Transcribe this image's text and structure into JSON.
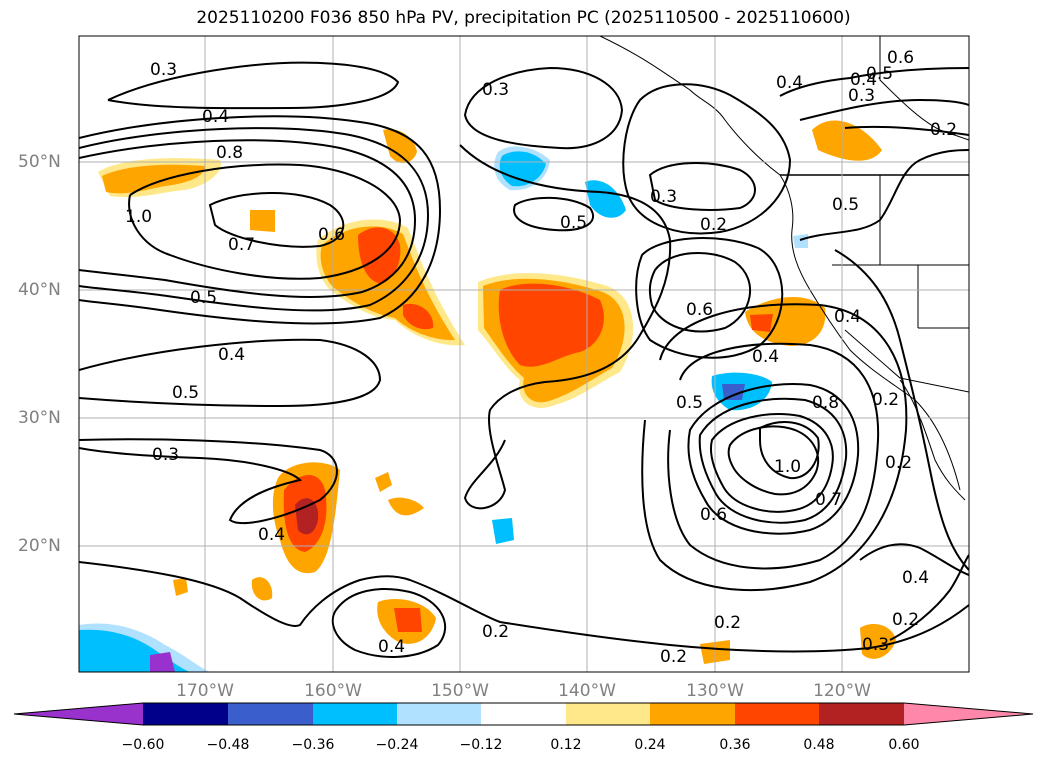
{
  "title": "2025110200 F036 850 hPa PV, precipitation PC (2025110500 - 2025110600)",
  "lat_labels": [
    "50°N",
    "40°N",
    "30°N",
    "20°N"
  ],
  "lon_labels": [
    "170°W",
    "160°W",
    "150°W",
    "140°W",
    "130°W",
    "120°W"
  ],
  "colorbar": {
    "ticks": [
      "−0.60",
      "−0.48",
      "−0.36",
      "−0.24",
      "−0.12",
      "0.12",
      "0.24",
      "0.36",
      "0.48",
      "0.60"
    ],
    "colors": [
      "#9932cc",
      "#00008b",
      "#3a5fcd",
      "#00bfff",
      "#b0e2ff",
      "#ffffff",
      "#ffe88a",
      "#ffa500",
      "#ff4500",
      "#b22222",
      "#ff88aa"
    ]
  },
  "contour_labels": [
    "0.3",
    "0.4",
    "0.8",
    "1.0",
    "0.7",
    "0.6",
    "0.5",
    "0.4",
    "0.5",
    "0.3",
    "0.4",
    "0.3",
    "0.5",
    "0.3",
    "0.2",
    "0.6",
    "0.5",
    "0.4",
    "0.5",
    "0.8",
    "1.0",
    "0.7",
    "0.6",
    "0.4",
    "0.2",
    "0.2",
    "0.2",
    "0.2",
    "0.3",
    "0.2",
    "0.6",
    "0.5",
    "0.4",
    "0.3",
    "0.2",
    "0.4",
    "0.4",
    "0.4",
    "0.2"
  ]
}
